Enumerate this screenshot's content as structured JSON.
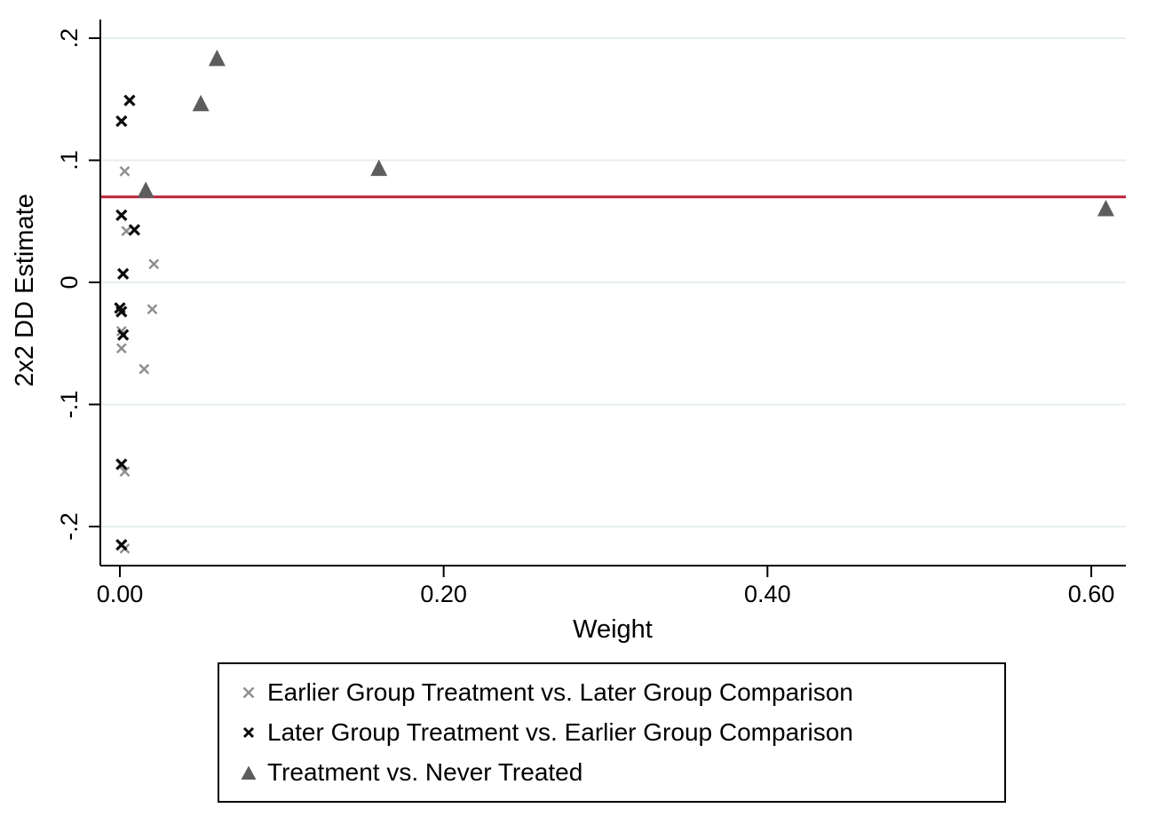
{
  "chart_data": {
    "type": "scatter",
    "title": "",
    "xlabel": "Weight",
    "ylabel": "2x2 DD Estimate",
    "grid": "horizontal-gridlines-on",
    "legend_position": "bottom-outside",
    "xlim": [
      -0.012,
      0.622
    ],
    "ylim": [
      -0.232,
      0.215
    ],
    "x_ticks": [
      {
        "value": 0.0,
        "label": "0.00"
      },
      {
        "value": 0.2,
        "label": "0.20"
      },
      {
        "value": 0.4,
        "label": "0.40"
      },
      {
        "value": 0.6,
        "label": "0.60"
      }
    ],
    "y_ticks": [
      {
        "value": 0.2,
        "label": ".2"
      },
      {
        "value": 0.1,
        "label": ".1"
      },
      {
        "value": 0.0,
        "label": "0"
      },
      {
        "value": -0.1,
        "label": "-.1"
      },
      {
        "value": -0.2,
        "label": "-.2"
      }
    ],
    "reference_line": {
      "name": "overall-dd-estimate",
      "value": 0.07,
      "color": "#bb2038"
    },
    "colors": {
      "gridline": "#e6eef0",
      "axis": "#000000",
      "background": "#ffffff"
    },
    "series": [
      {
        "name": "Earlier Group Treatment vs. Later Group Comparison",
        "marker": "x",
        "color": "#8f8f8f",
        "points": [
          [
            0.003,
            0.091
          ],
          [
            0.004,
            0.042
          ],
          [
            0.021,
            0.015
          ],
          [
            0.02,
            -0.022
          ],
          [
            0.001,
            -0.04
          ],
          [
            0.001,
            -0.054
          ],
          [
            0.015,
            -0.071
          ],
          [
            0.003,
            -0.155
          ],
          [
            0.003,
            -0.218
          ]
        ]
      },
      {
        "name": "Later Group Treatment vs. Earlier Group Comparison",
        "marker": "x",
        "color": "#0a0a0a",
        "points": [
          [
            0.006,
            0.149
          ],
          [
            0.001,
            0.132
          ],
          [
            0.001,
            0.055
          ],
          [
            0.009,
            0.043
          ],
          [
            0.002,
            0.007
          ],
          [
            0.0,
            -0.021
          ],
          [
            0.001,
            -0.024
          ],
          [
            0.002,
            -0.043
          ],
          [
            0.001,
            -0.149
          ],
          [
            0.001,
            -0.215
          ]
        ]
      },
      {
        "name": "Treatment vs. Never Treated",
        "marker": "triangle",
        "color": "#5d5d5d",
        "points": [
          [
            0.06,
            0.183
          ],
          [
            0.05,
            0.146
          ],
          [
            0.016,
            0.075
          ],
          [
            0.16,
            0.093
          ],
          [
            0.609,
            0.06
          ]
        ]
      }
    ]
  }
}
